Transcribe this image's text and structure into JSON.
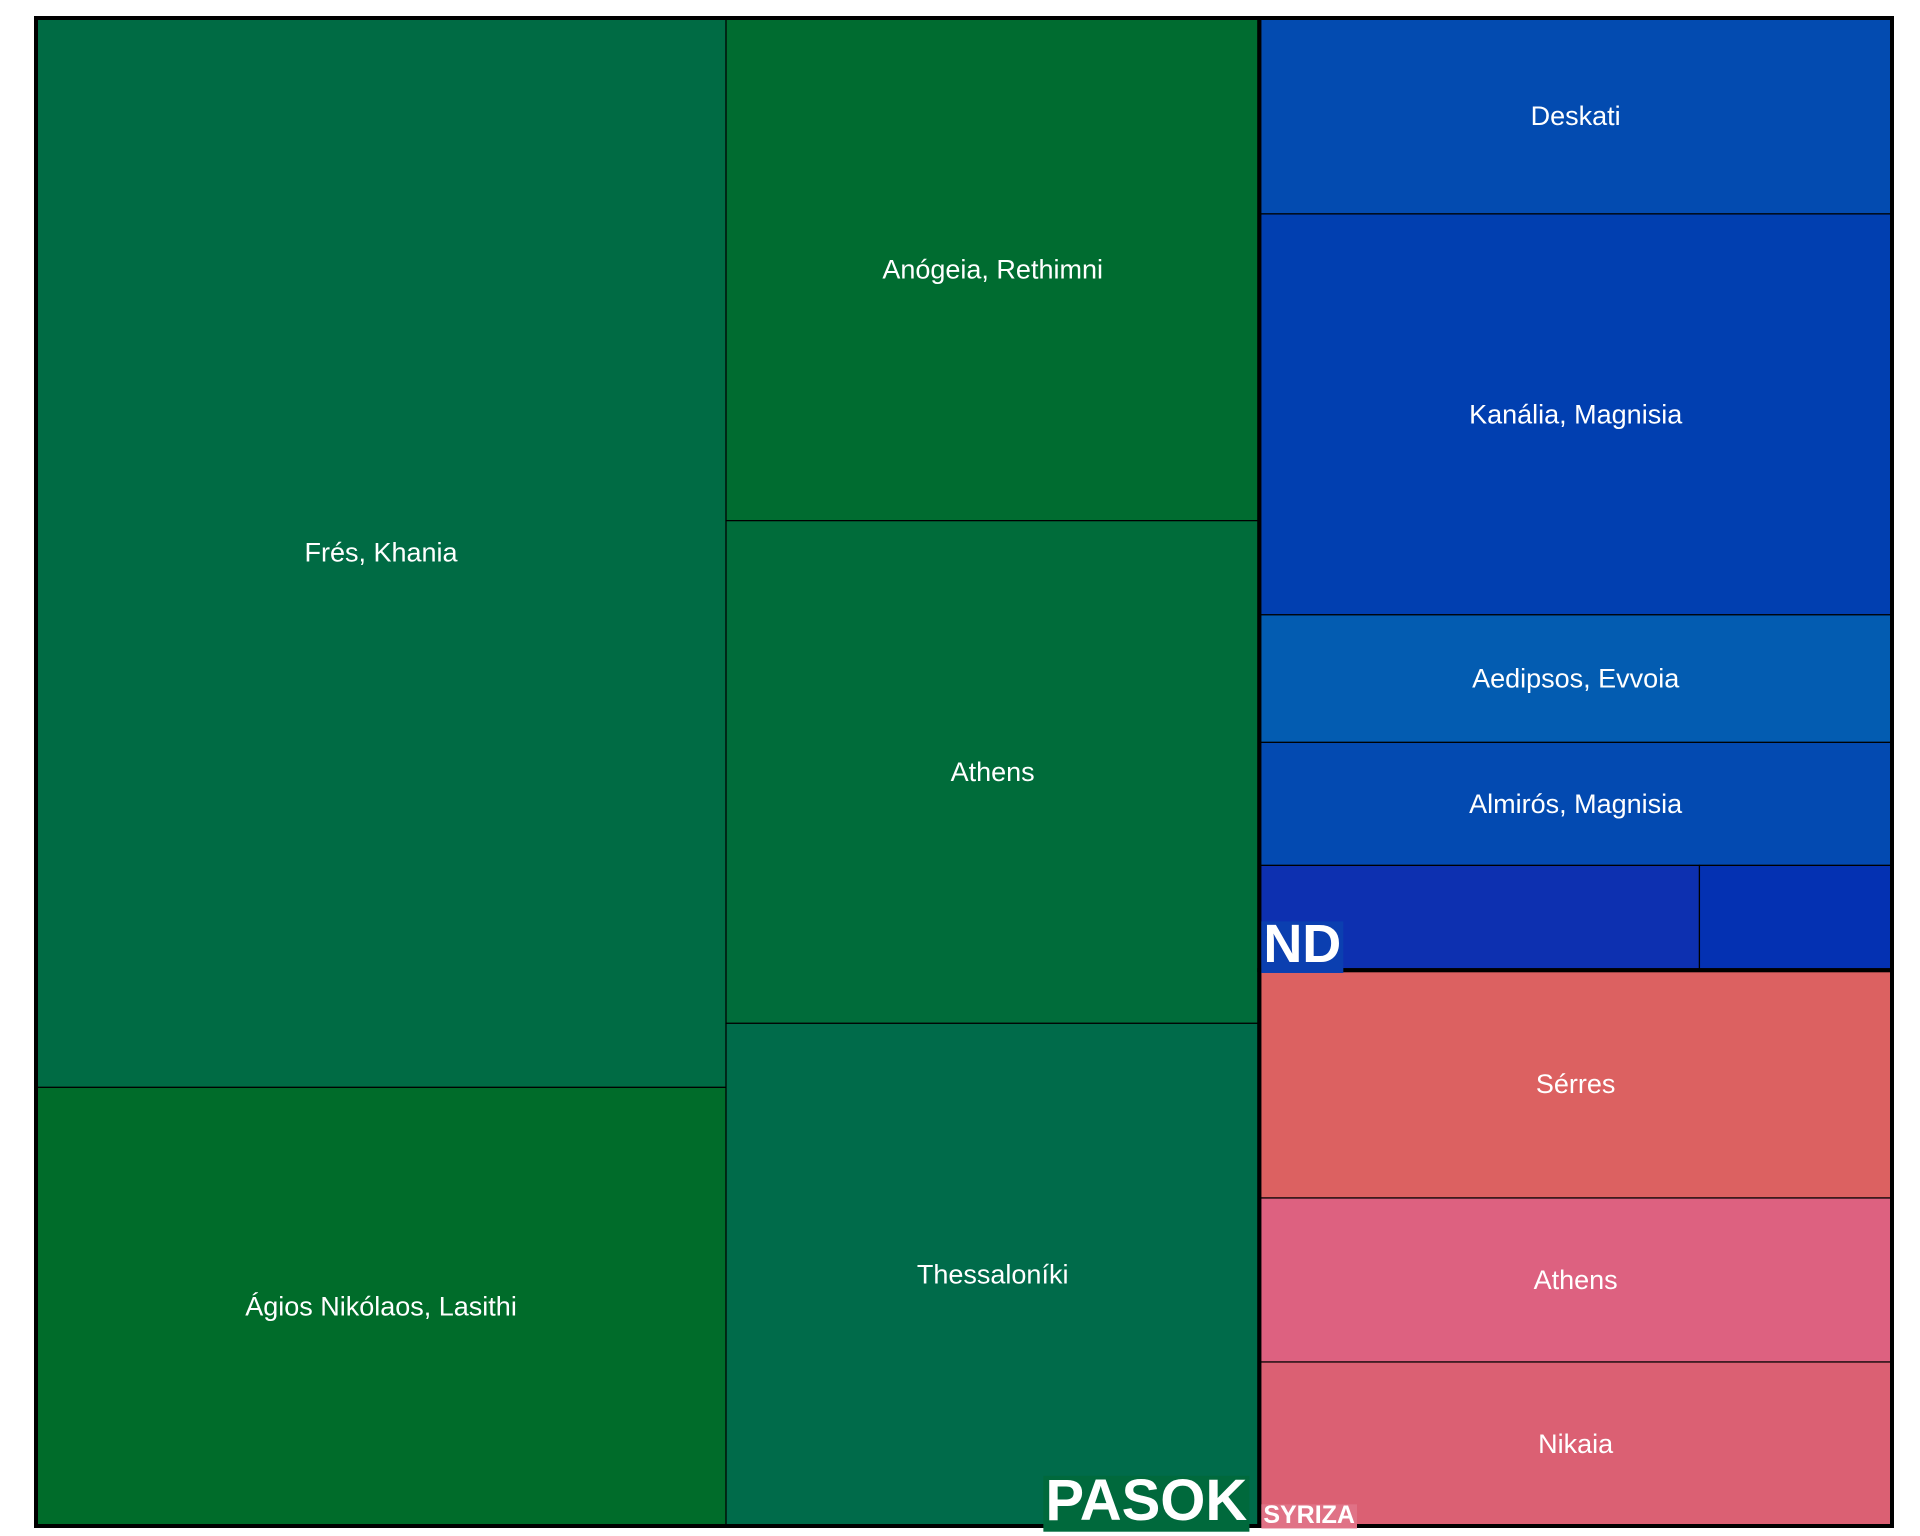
{
  "chart_data": {
    "type": "treemap",
    "groups": [
      {
        "name": "PASOK",
        "color": "#00693c",
        "leaves": [
          {
            "label": "Frés, Khania",
            "value": 25.6,
            "color": "#006b44"
          },
          {
            "label": "Ágios Nikólaos, Lasithi",
            "value": 10.5,
            "color": "#006c2a"
          },
          {
            "label": "Anógeia, Rethimni",
            "value": 9.3,
            "color": "#006c30"
          },
          {
            "label": "Athens",
            "value": 9.3,
            "color": "#006c3a"
          },
          {
            "label": "Thessaloníki",
            "value": 9.3,
            "color": "#006b4a"
          }
        ]
      },
      {
        "name": "ND",
        "color": "#0b3fb0",
        "leaves": [
          {
            "label": "Deskati",
            "value": 4.3,
            "color": "#034bb0"
          },
          {
            "label": "Kanália, Magnisia",
            "value": 8.8,
            "color": "#013fb0"
          },
          {
            "label": "Aedipsos, Evvoia",
            "value": 2.8,
            "color": "#035cb1"
          },
          {
            "label": "Almirós, Magnisia",
            "value": 2.7,
            "color": "#034ab1"
          },
          {
            "label": "",
            "value": 1.6,
            "color": "#0d30b0"
          },
          {
            "label": "",
            "value": 0.7,
            "color": "#0431b2"
          }
        ]
      },
      {
        "name": "SYRIZA",
        "color": "#e07286",
        "leaves": [
          {
            "label": "Sérres",
            "value": 5.0,
            "color": "#dc6161"
          },
          {
            "label": "Athens",
            "value": 3.6,
            "color": "#dd6180"
          },
          {
            "label": "Nikaia",
            "value": 3.6,
            "color": "#db6073"
          }
        ]
      }
    ]
  }
}
